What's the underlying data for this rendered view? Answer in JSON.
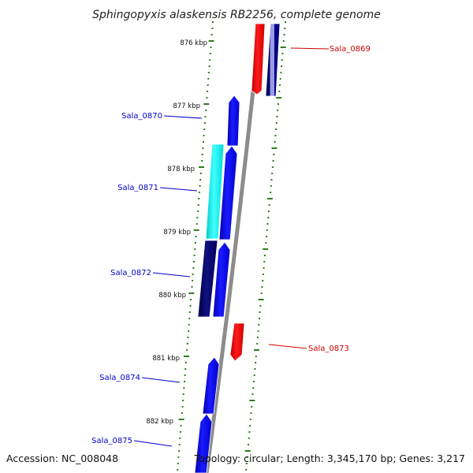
{
  "title": "Sphingopyxis alaskensis RB2256, complete genome",
  "accession": "Accession: NC_008048",
  "topology": "Topology: circular; Length: 3,345,170 bp; Genes: 3,217",
  "colors": {
    "backbone": "#8c8c8c",
    "tick": "#2e7d1e",
    "forward_label": "#0000cc",
    "reverse_label": "#cc0000"
  },
  "ticks": [
    {
      "label": "876 kbp"
    },
    {
      "label": "877 kbp"
    },
    {
      "label": "878 kbp"
    },
    {
      "label": "879 kbp"
    },
    {
      "label": "880 kbp"
    },
    {
      "label": "881 kbp"
    },
    {
      "label": "882 kbp"
    }
  ],
  "gene_labels": [
    {
      "name": "Sala_0869",
      "strand": "reverse"
    },
    {
      "name": "Sala_0870",
      "strand": "forward"
    },
    {
      "name": "Sala_0871",
      "strand": "forward"
    },
    {
      "name": "Sala_0872",
      "strand": "forward"
    },
    {
      "name": "Sala_0873",
      "strand": "reverse"
    },
    {
      "name": "Sala_0874",
      "strand": "forward"
    },
    {
      "name": "Sala_0875",
      "strand": "forward"
    }
  ]
}
